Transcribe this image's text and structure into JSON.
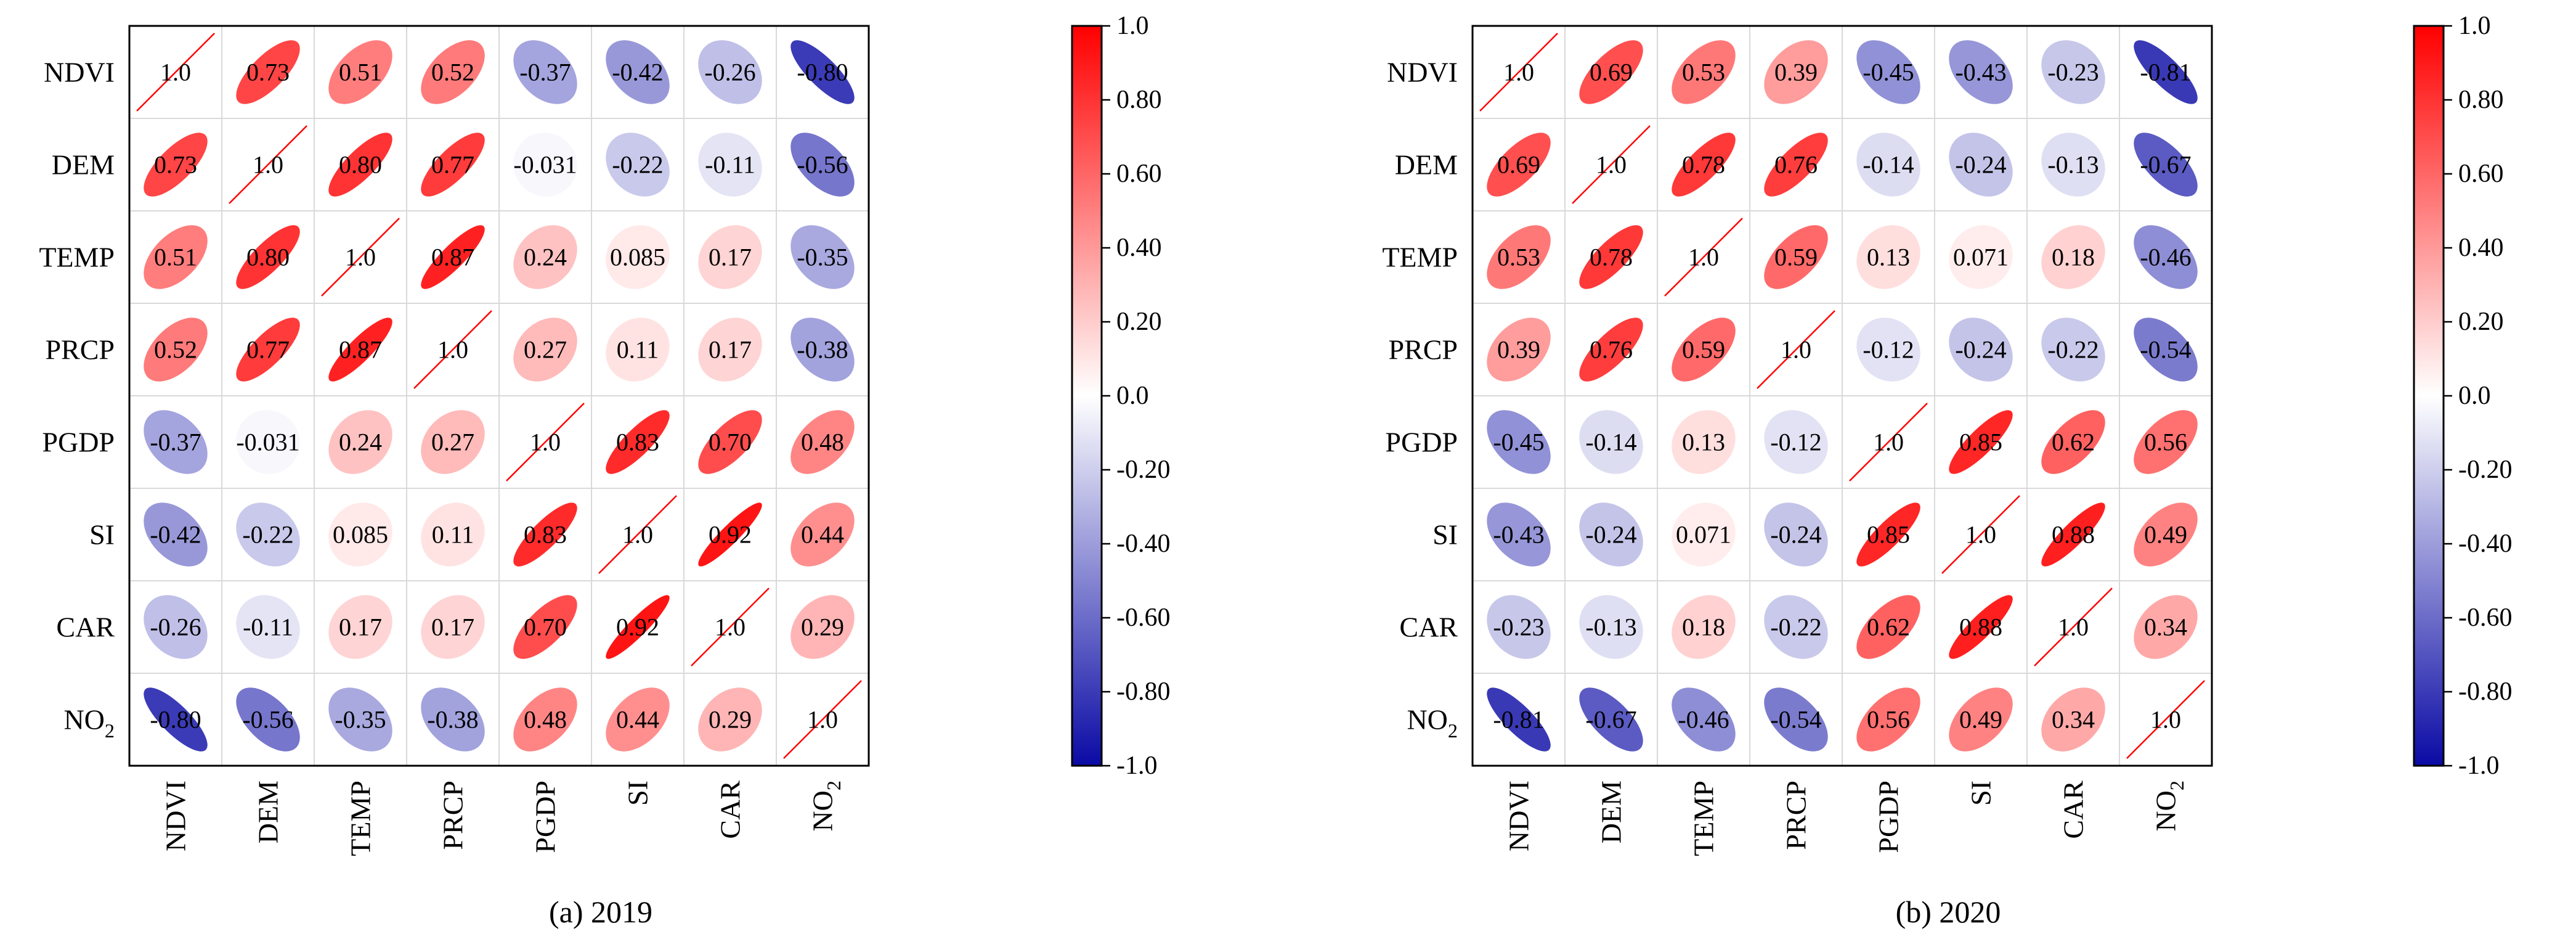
{
  "figure": {
    "panels": [
      {
        "id": "a",
        "caption": "(a) 2019"
      },
      {
        "id": "b",
        "caption": "(b) 2020"
      }
    ]
  },
  "chart_data": [
    {
      "type": "heatmap",
      "style": "correlation-ellipse",
      "title": "",
      "caption": "(a) 2019",
      "row_labels": [
        "NDVI",
        "DEM",
        "TEMP",
        "PRCP",
        "PGDP",
        "SI",
        "CAR",
        "NO₂"
      ],
      "col_labels": [
        "NDVI",
        "DEM",
        "TEMP",
        "PRCP",
        "PGDP",
        "SI",
        "CAR",
        "NO₂"
      ],
      "values": [
        [
          1.0,
          0.73,
          0.51,
          0.52,
          -0.37,
          -0.42,
          -0.26,
          -0.8
        ],
        [
          0.73,
          1.0,
          0.8,
          0.77,
          -0.031,
          -0.22,
          -0.11,
          -0.56
        ],
        [
          0.51,
          0.8,
          1.0,
          0.87,
          0.24,
          0.085,
          0.17,
          -0.35
        ],
        [
          0.52,
          0.77,
          0.87,
          1.0,
          0.27,
          0.11,
          0.17,
          -0.38
        ],
        [
          -0.37,
          -0.031,
          0.24,
          0.27,
          1.0,
          0.83,
          0.7,
          0.48
        ],
        [
          -0.42,
          -0.22,
          0.085,
          0.11,
          0.83,
          1.0,
          0.92,
          0.44
        ],
        [
          -0.26,
          -0.11,
          0.17,
          0.17,
          0.7,
          0.92,
          1.0,
          0.29
        ],
        [
          -0.8,
          -0.56,
          -0.35,
          -0.38,
          0.48,
          0.44,
          0.29,
          1.0
        ]
      ],
      "value_labels": [
        [
          "1.0",
          "0.73",
          "0.51",
          "0.52",
          "-0.37",
          "-0.42",
          "-0.26",
          "-0.80"
        ],
        [
          "0.73",
          "1.0",
          "0.80",
          "0.77",
          "-0.031",
          "-0.22",
          "-0.11",
          "-0.56"
        ],
        [
          "0.51",
          "0.80",
          "1.0",
          "0.87",
          "0.24",
          "0.085",
          "0.17",
          "-0.35"
        ],
        [
          "0.52",
          "0.77",
          "0.87",
          "1.0",
          "0.27",
          "0.11",
          "0.17",
          "-0.38"
        ],
        [
          "-0.37",
          "-0.031",
          "0.24",
          "0.27",
          "1.0",
          "0.83",
          "0.70",
          "0.48"
        ],
        [
          "-0.42",
          "-0.22",
          "0.085",
          "0.11",
          "0.83",
          "1.0",
          "0.92",
          "0.44"
        ],
        [
          "-0.26",
          "-0.11",
          "0.17",
          "0.17",
          "0.70",
          "0.92",
          "1.0",
          "0.29"
        ],
        [
          "-0.80",
          "-0.56",
          "-0.35",
          "-0.38",
          "0.48",
          "0.44",
          "0.29",
          "1.0"
        ]
      ],
      "colorbar": {
        "range": [
          -1.0,
          1.0
        ],
        "ticks": [
          "1.0",
          "0.80",
          "0.60",
          "0.40",
          "0.20",
          "0.0",
          "-0.20",
          "-0.40",
          "-0.60",
          "-0.80",
          "-1.0"
        ],
        "colors": {
          "negative": "#0a0aa5",
          "zero": "#ffffff",
          "positive": "#ff0000"
        }
      },
      "grid": true,
      "legend": "right"
    },
    {
      "type": "heatmap",
      "style": "correlation-ellipse",
      "title": "",
      "caption": "(b) 2020",
      "row_labels": [
        "NDVI",
        "DEM",
        "TEMP",
        "PRCP",
        "PGDP",
        "SI",
        "CAR",
        "NO₂"
      ],
      "col_labels": [
        "NDVI",
        "DEM",
        "TEMP",
        "PRCP",
        "PGDP",
        "SI",
        "CAR",
        "NO₂"
      ],
      "values": [
        [
          1.0,
          0.69,
          0.53,
          0.39,
          -0.45,
          -0.43,
          -0.23,
          -0.81
        ],
        [
          0.69,
          1.0,
          0.78,
          0.76,
          -0.14,
          -0.24,
          -0.13,
          -0.67
        ],
        [
          0.53,
          0.78,
          1.0,
          0.59,
          0.13,
          0.071,
          0.18,
          -0.46
        ],
        [
          0.39,
          0.76,
          0.59,
          1.0,
          -0.12,
          -0.24,
          -0.22,
          -0.54
        ],
        [
          -0.45,
          -0.14,
          0.13,
          -0.12,
          1.0,
          0.85,
          0.62,
          0.56
        ],
        [
          -0.43,
          -0.24,
          0.071,
          -0.24,
          0.85,
          1.0,
          0.88,
          0.49
        ],
        [
          -0.23,
          -0.13,
          0.18,
          -0.22,
          0.62,
          0.88,
          1.0,
          0.34
        ],
        [
          -0.81,
          -0.67,
          -0.46,
          -0.54,
          0.56,
          0.49,
          0.34,
          1.0
        ]
      ],
      "value_labels": [
        [
          "1.0",
          "0.69",
          "0.53",
          "0.39",
          "-0.45",
          "-0.43",
          "-0.23",
          "-0.81"
        ],
        [
          "0.69",
          "1.0",
          "0.78",
          "0.76",
          "-0.14",
          "-0.24",
          "-0.13",
          "-0.67"
        ],
        [
          "0.53",
          "0.78",
          "1.0",
          "0.59",
          "0.13",
          "0.071",
          "0.18",
          "-0.46"
        ],
        [
          "0.39",
          "0.76",
          "0.59",
          "1.0",
          "-0.12",
          "-0.24",
          "-0.22",
          "-0.54"
        ],
        [
          "-0.45",
          "-0.14",
          "0.13",
          "-0.12",
          "1.0",
          "0.85",
          "0.62",
          "0.56"
        ],
        [
          "-0.43",
          "-0.24",
          "0.071",
          "-0.24",
          "0.85",
          "1.0",
          "0.88",
          "0.49"
        ],
        [
          "-0.23",
          "-0.13",
          "0.18",
          "-0.22",
          "0.62",
          "0.88",
          "1.0",
          "0.34"
        ],
        [
          "-0.81",
          "-0.67",
          "-0.46",
          "-0.54",
          "0.56",
          "0.49",
          "0.34",
          "1.0"
        ]
      ],
      "colorbar": {
        "range": [
          -1.0,
          1.0
        ],
        "ticks": [
          "1.0",
          "0.80",
          "0.60",
          "0.40",
          "0.20",
          "0.0",
          "-0.20",
          "-0.40",
          "-0.60",
          "-0.80",
          "-1.0"
        ],
        "colors": {
          "negative": "#0a0aa5",
          "zero": "#ffffff",
          "positive": "#ff0000"
        }
      },
      "grid": true,
      "legend": "right"
    }
  ]
}
